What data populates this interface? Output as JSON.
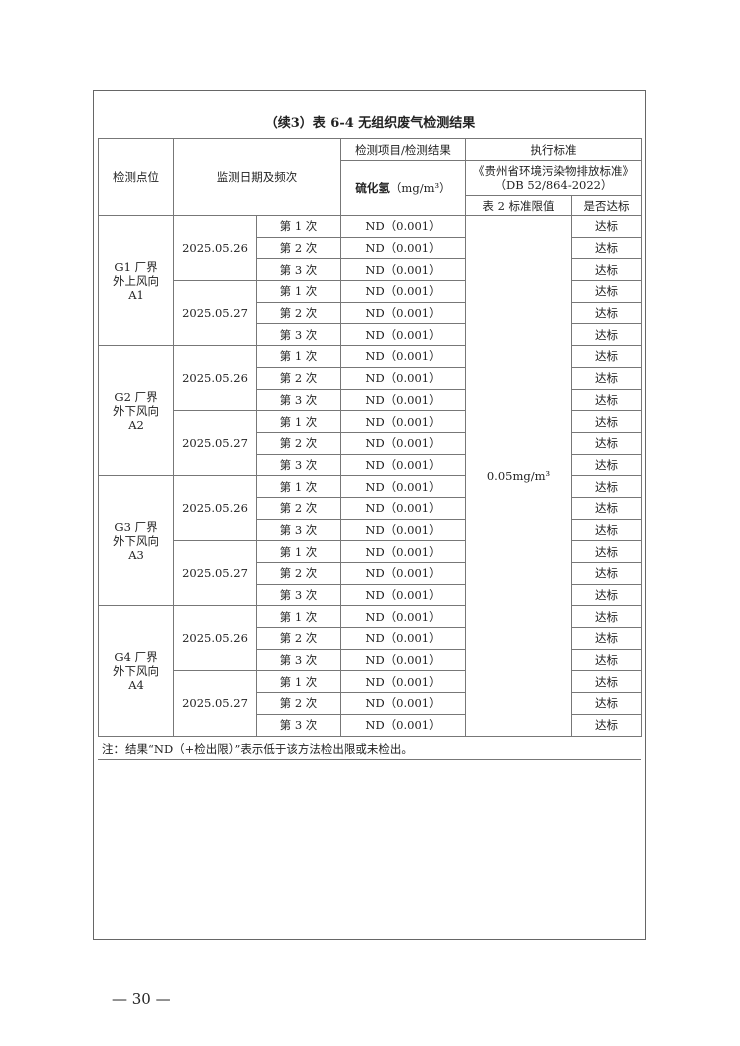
{
  "title": "（续3）表 6-4  无组织废气检测结果",
  "header": {
    "location": "检测点位",
    "date_freq": "监测日期及频次",
    "item_result": "检测项目/检测结果",
    "pollutant": "硫化氢",
    "unit": "（mg/m³）",
    "standard": "执行标准",
    "standard_name": "《贵州省环境污染物排放标准》（DB 52/864-2022）",
    "limit_col": "表 2 标准限值",
    "compliance_col": "是否达标"
  },
  "limit_value": "0.05mg/m³",
  "points": [
    {
      "name": "G1 厂界外上风向A1",
      "dates": [
        {
          "date": "2025.05.26",
          "times": [
            {
              "label": "第 1 次",
              "result": "ND（0.001）",
              "compliance": "达标"
            },
            {
              "label": "第 2 次",
              "result": "ND（0.001）",
              "compliance": "达标"
            },
            {
              "label": "第 3 次",
              "result": "ND（0.001）",
              "compliance": "达标"
            }
          ]
        },
        {
          "date": "2025.05.27",
          "times": [
            {
              "label": "第 1 次",
              "result": "ND（0.001）",
              "compliance": "达标"
            },
            {
              "label": "第 2 次",
              "result": "ND（0.001）",
              "compliance": "达标"
            },
            {
              "label": "第 3 次",
              "result": "ND（0.001）",
              "compliance": "达标"
            }
          ]
        }
      ]
    },
    {
      "name": "G2 厂界外下风向A2",
      "dates": [
        {
          "date": "2025.05.26",
          "times": [
            {
              "label": "第 1 次",
              "result": "ND（0.001）",
              "compliance": "达标"
            },
            {
              "label": "第 2 次",
              "result": "ND（0.001）",
              "compliance": "达标"
            },
            {
              "label": "第 3 次",
              "result": "ND（0.001）",
              "compliance": "达标"
            }
          ]
        },
        {
          "date": "2025.05.27",
          "times": [
            {
              "label": "第 1 次",
              "result": "ND（0.001）",
              "compliance": "达标"
            },
            {
              "label": "第 2 次",
              "result": "ND（0.001）",
              "compliance": "达标"
            },
            {
              "label": "第 3 次",
              "result": "ND（0.001）",
              "compliance": "达标"
            }
          ]
        }
      ]
    },
    {
      "name": "G3 厂界外下风向A3",
      "dates": [
        {
          "date": "2025.05.26",
          "times": [
            {
              "label": "第 1 次",
              "result": "ND（0.001）",
              "compliance": "达标"
            },
            {
              "label": "第 2 次",
              "result": "ND（0.001）",
              "compliance": "达标"
            },
            {
              "label": "第 3 次",
              "result": "ND（0.001）",
              "compliance": "达标"
            }
          ]
        },
        {
          "date": "2025.05.27",
          "times": [
            {
              "label": "第 1 次",
              "result": "ND（0.001）",
              "compliance": "达标"
            },
            {
              "label": "第 2 次",
              "result": "ND（0.001）",
              "compliance": "达标"
            },
            {
              "label": "第 3 次",
              "result": "ND（0.001）",
              "compliance": "达标"
            }
          ]
        }
      ]
    },
    {
      "name": "G4 厂界外下风向 A4",
      "dates": [
        {
          "date": "2025.05.26",
          "times": [
            {
              "label": "第 1 次",
              "result": "ND（0.001）",
              "compliance": "达标"
            },
            {
              "label": "第 2 次",
              "result": "ND（0.001）",
              "compliance": "达标"
            },
            {
              "label": "第 3 次",
              "result": "ND（0.001）",
              "compliance": "达标"
            }
          ]
        },
        {
          "date": "2025.05.27",
          "times": [
            {
              "label": "第 1 次",
              "result": "ND（0.001）",
              "compliance": "达标"
            },
            {
              "label": "第 2 次",
              "result": "ND（0.001）",
              "compliance": "达标"
            },
            {
              "label": "第 3 次",
              "result": "ND（0.001）",
              "compliance": "达标"
            }
          ]
        }
      ]
    }
  ],
  "note": "注：结果“ND（+检出限）”表示低于该方法检出限或未检出。",
  "page_number": "— 30 —"
}
